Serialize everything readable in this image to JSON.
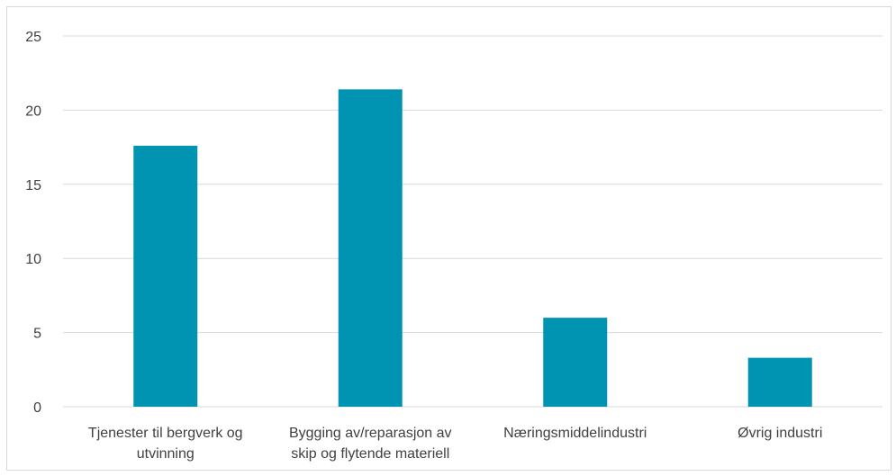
{
  "chart_data": {
    "type": "bar",
    "title": "",
    "xlabel": "",
    "ylabel": "",
    "categories": [
      [
        "Tjenester til bergverk og",
        "utvinning"
      ],
      [
        "Bygging av/reparasjon av",
        "skip og flytende materiell"
      ],
      [
        "Næringsmiddelindustri"
      ],
      [
        "Øvrig industri"
      ]
    ],
    "values": [
      17.6,
      21.4,
      6.0,
      3.3
    ],
    "ylim": [
      0,
      25
    ],
    "yticks": [
      "0",
      "5",
      "10",
      "15",
      "20",
      "25"
    ],
    "grid": true,
    "legend": "none",
    "bar_color": "#0093b2",
    "grid_color": "#d9d9d9"
  }
}
